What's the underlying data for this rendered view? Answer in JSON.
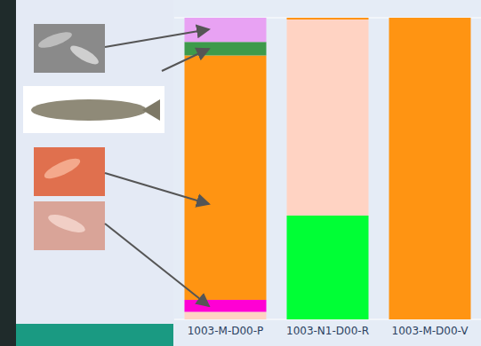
{
  "chart_data": {
    "type": "bar",
    "stacked": true,
    "categories": [
      "1003-M-D00-P",
      "1003-N1-D00-R",
      "1003-M-D00-V"
    ],
    "series": [
      {
        "color": "#00ff35",
        "values": [
          0,
          34.4,
          0
        ]
      },
      {
        "color": "#ffd3c3",
        "values": [
          2.5,
          65,
          0
        ]
      },
      {
        "color": "#ff00d4",
        "values": [
          4,
          0,
          0
        ]
      },
      {
        "color": "#ff9412",
        "values": [
          81,
          0.6,
          100
        ]
      },
      {
        "color": "#3d9a4b",
        "values": [
          4.5,
          0,
          0
        ]
      },
      {
        "color": "#e8a2f3",
        "values": [
          8,
          0,
          0
        ]
      }
    ],
    "ylim": [
      0,
      100
    ],
    "yticks": [
      0,
      20,
      40,
      60,
      80,
      100
    ],
    "grid": true,
    "tick_labels": "x"
  }
}
